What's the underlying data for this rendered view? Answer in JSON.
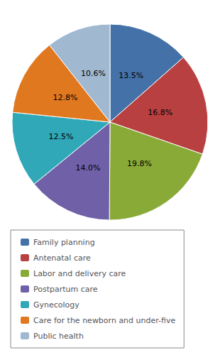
{
  "chart_data": {
    "type": "pie",
    "categories": [
      "Family planning",
      "Antenatal care",
      "Labor and delivery care",
      "Postpartum care",
      "Gynecology",
      "Care for the newborn and under-five",
      "Public health"
    ],
    "values": [
      13.5,
      16.8,
      19.8,
      14.0,
      12.5,
      12.8,
      10.6
    ],
    "value_labels": [
      "13.5%",
      "16.8%",
      "19.8%",
      "14.0%",
      "12.5%",
      "12.8%",
      "10.6%"
    ],
    "colors": [
      "#4472a8",
      "#b84040",
      "#8aaa38",
      "#7060a8",
      "#30a8b8",
      "#e07820",
      "#a0b8d0"
    ],
    "data_labels": true,
    "legend": "lower left"
  }
}
